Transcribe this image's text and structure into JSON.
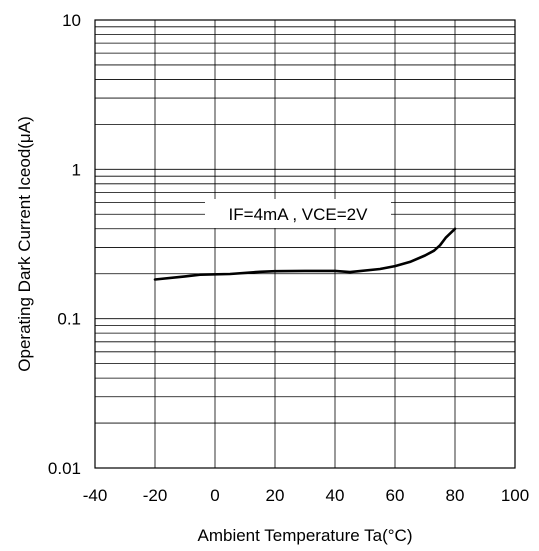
{
  "chart_data": {
    "type": "line",
    "xlabel": "Ambient Temperature Ta(°C)",
    "ylabel": "Operating Dark Current Iceod(μA)",
    "xlim": [
      -40,
      100
    ],
    "ylim": [
      0.01,
      10
    ],
    "yscale": "log",
    "grid": true,
    "x_ticks": [
      -40,
      -20,
      0,
      20,
      40,
      60,
      80,
      100
    ],
    "x_tick_labels": [
      "-40",
      "-20",
      "0",
      "20",
      "40",
      "60",
      "80",
      "100"
    ],
    "y_ticks": [
      0.01,
      0.1,
      1,
      10
    ],
    "y_tick_labels": [
      "0.01",
      "0.1",
      "1",
      "10"
    ],
    "annotation": "IF=4mA , VCE=2V",
    "series": [
      {
        "x": [
          -20,
          -10,
          -5,
          5,
          15,
          20,
          30,
          40,
          45,
          55,
          60,
          65,
          70,
          73,
          75,
          77,
          80
        ],
        "y": [
          0.183,
          0.192,
          0.197,
          0.199,
          0.206,
          0.208,
          0.209,
          0.209,
          0.205,
          0.215,
          0.225,
          0.24,
          0.265,
          0.285,
          0.31,
          0.35,
          0.4
        ]
      }
    ]
  }
}
